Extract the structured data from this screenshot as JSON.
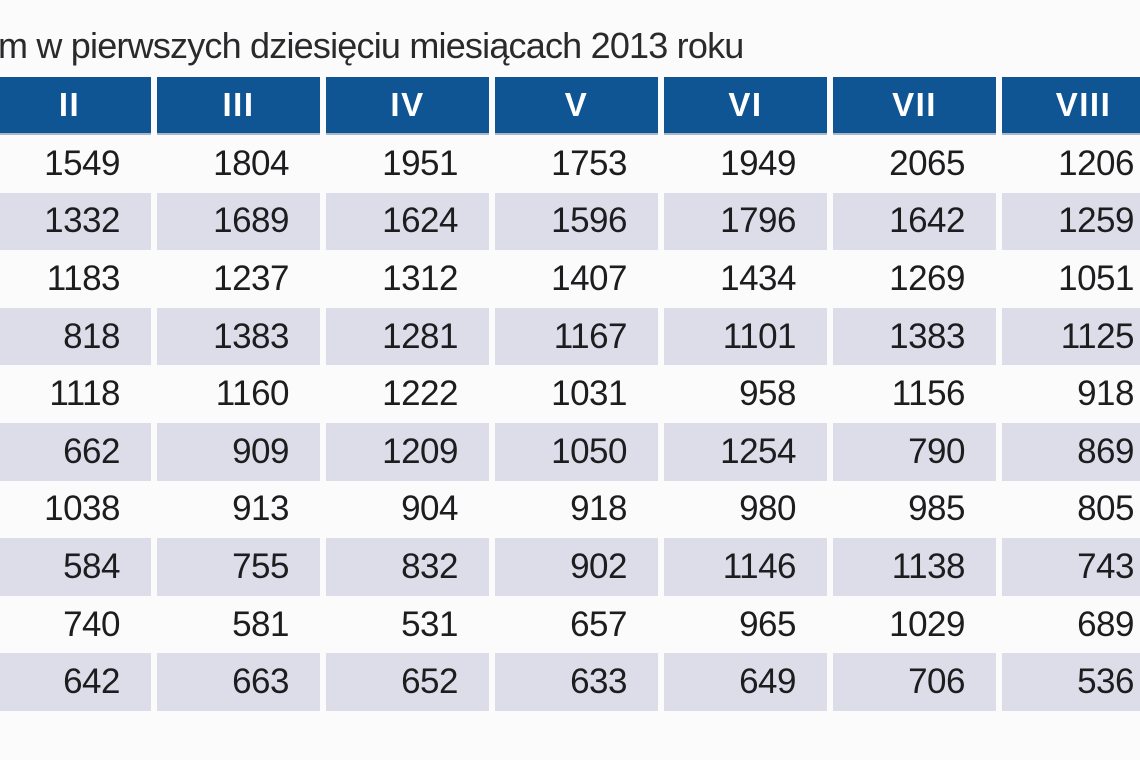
{
  "title": "m w pierwszych dziesięciu miesiącach 2013 roku",
  "colors": {
    "header_navy": "#0f5593",
    "row_lavender": "#dcdde9",
    "row_white": "#fbfbfc",
    "header_text": "#ffffff",
    "cell_text": "#1d1d1f",
    "title_text": "#2a2a2c"
  },
  "chart_data": {
    "type": "table",
    "title": "m w pierwszych dziesięciu miesiącach 2013 roku",
    "columns": [
      "II",
      "III",
      "IV",
      "V",
      "VI",
      "VII",
      "VIII"
    ],
    "rows": [
      [
        1549,
        1804,
        1951,
        1753,
        1949,
        2065,
        1206
      ],
      [
        1332,
        1689,
        1624,
        1596,
        1796,
        1642,
        1259
      ],
      [
        1183,
        1237,
        1312,
        1407,
        1434,
        1269,
        1051
      ],
      [
        818,
        1383,
        1281,
        1167,
        1101,
        1383,
        1125
      ],
      [
        1118,
        1160,
        1222,
        1031,
        958,
        1156,
        918
      ],
      [
        662,
        909,
        1209,
        1050,
        1254,
        790,
        869
      ],
      [
        1038,
        913,
        904,
        918,
        980,
        985,
        805
      ],
      [
        584,
        755,
        832,
        902,
        1146,
        1138,
        743
      ],
      [
        740,
        581,
        531,
        657,
        965,
        1029,
        689
      ],
      [
        642,
        663,
        652,
        633,
        649,
        706,
        536
      ]
    ],
    "layout": {
      "striping": "even rows lavender, odd rows white",
      "left_column_cut": true,
      "right_column_cut": true,
      "title_cut_left": true
    }
  }
}
